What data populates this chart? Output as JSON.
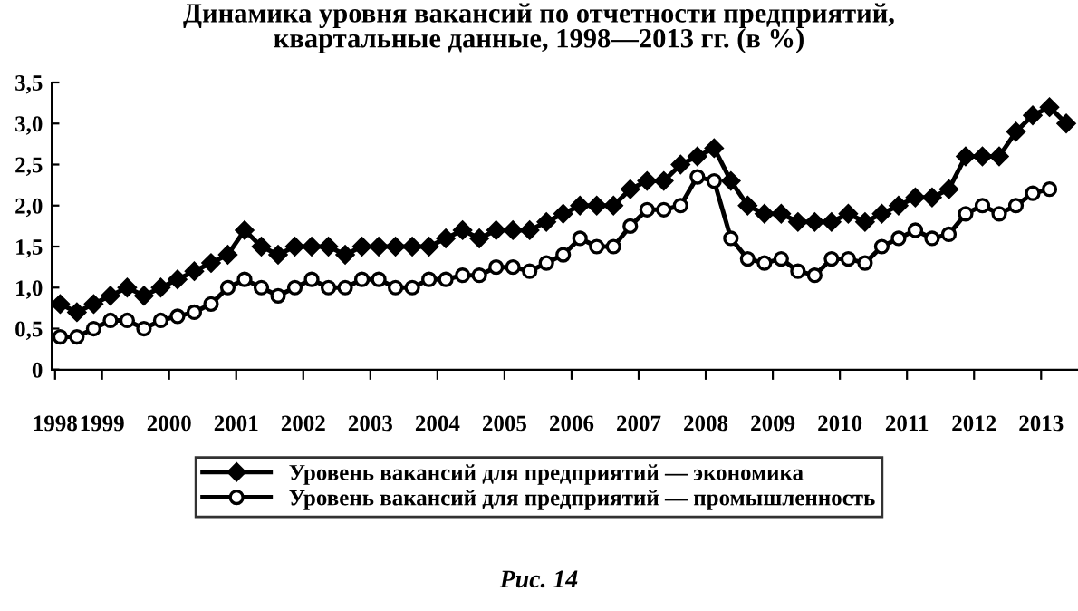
{
  "chart_data": {
    "type": "line",
    "title": "Динамика уровня вакансий по отчетности предприятий,\nквартальные данные, 1998—2013 гг. (в %)",
    "x": [
      1998.375,
      1998.625,
      1998.875,
      1999.125,
      1999.375,
      1999.625,
      1999.875,
      2000.125,
      2000.375,
      2000.625,
      2000.875,
      2001.125,
      2001.375,
      2001.625,
      2001.875,
      2002.125,
      2002.375,
      2002.625,
      2002.875,
      2003.125,
      2003.375,
      2003.625,
      2003.875,
      2004.125,
      2004.375,
      2004.625,
      2004.875,
      2005.125,
      2005.375,
      2005.625,
      2005.875,
      2006.125,
      2006.375,
      2006.625,
      2006.875,
      2007.125,
      2007.375,
      2007.625,
      2007.875,
      2008.125,
      2008.375,
      2008.625,
      2008.875,
      2009.125,
      2009.375,
      2009.625,
      2009.875,
      2010.125,
      2010.375,
      2010.625,
      2010.875,
      2011.125,
      2011.375,
      2011.625,
      2011.875,
      2012.125,
      2012.375,
      2012.625,
      2012.875,
      2013.125,
      2013.375
    ],
    "series": [
      {
        "name": "Уровень вакансий для предприятий — экономика",
        "color": "#000000",
        "marker": "diamond",
        "values": [
          0.8,
          0.7,
          0.8,
          0.9,
          1.0,
          0.9,
          1.0,
          1.1,
          1.2,
          1.3,
          1.4,
          1.7,
          1.5,
          1.4,
          1.5,
          1.5,
          1.5,
          1.4,
          1.5,
          1.5,
          1.5,
          1.5,
          1.5,
          1.6,
          1.7,
          1.6,
          1.7,
          1.7,
          1.7,
          1.8,
          1.9,
          2.0,
          2.0,
          2.0,
          2.2,
          2.3,
          2.3,
          2.5,
          2.6,
          2.7,
          2.3,
          2.0,
          1.9,
          1.9,
          1.8,
          1.8,
          1.8,
          1.9,
          1.8,
          1.9,
          2.0,
          2.1,
          2.1,
          2.2,
          2.6,
          2.6,
          2.6,
          2.9,
          3.1,
          3.2,
          3.0
        ]
      },
      {
        "name": "Уровень вакансий для предприятий — промышленность",
        "color": "#000000",
        "marker": "circle",
        "values": [
          0.4,
          0.4,
          0.5,
          0.6,
          0.6,
          0.5,
          0.6,
          0.65,
          0.7,
          0.8,
          1.0,
          1.1,
          1.0,
          0.9,
          1.0,
          1.1,
          1.0,
          1.0,
          1.1,
          1.1,
          1.0,
          1.0,
          1.1,
          1.1,
          1.15,
          1.15,
          1.25,
          1.25,
          1.2,
          1.3,
          1.4,
          1.6,
          1.5,
          1.5,
          1.75,
          1.95,
          1.95,
          2.0,
          2.35,
          2.3,
          1.6,
          1.35,
          1.3,
          1.35,
          1.2,
          1.15,
          1.35,
          1.35,
          1.3,
          1.5,
          1.6,
          1.7,
          1.6,
          1.65,
          1.9,
          2.0,
          1.9,
          2.0,
          2.15,
          2.2,
          null
        ]
      }
    ],
    "xlim": [
      1998.25,
      2013.55
    ],
    "xticks": [
      {
        "value": 1998.3,
        "label": "1998"
      },
      1999,
      2000,
      2001,
      2002,
      2003,
      2004,
      2005,
      2006,
      2007,
      2008,
      2009,
      2010,
      2011,
      2012,
      2013
    ],
    "ylim": [
      0,
      3.5
    ],
    "yticks": [
      0,
      {
        "value": 0.5,
        "label": "0,5"
      },
      {
        "value": 1.0,
        "label": "1,0"
      },
      {
        "value": 1.5,
        "label": "1,5"
      },
      {
        "value": 2.0,
        "label": "2,0"
      },
      {
        "value": 2.5,
        "label": "2,5"
      },
      {
        "value": 3.0,
        "label": "3,0"
      },
      {
        "value": 3.5,
        "label": "3,5"
      }
    ],
    "grid": false,
    "legend": "bottom",
    "line_style": "solid",
    "annotations": [
      "Рис. 14"
    ]
  }
}
